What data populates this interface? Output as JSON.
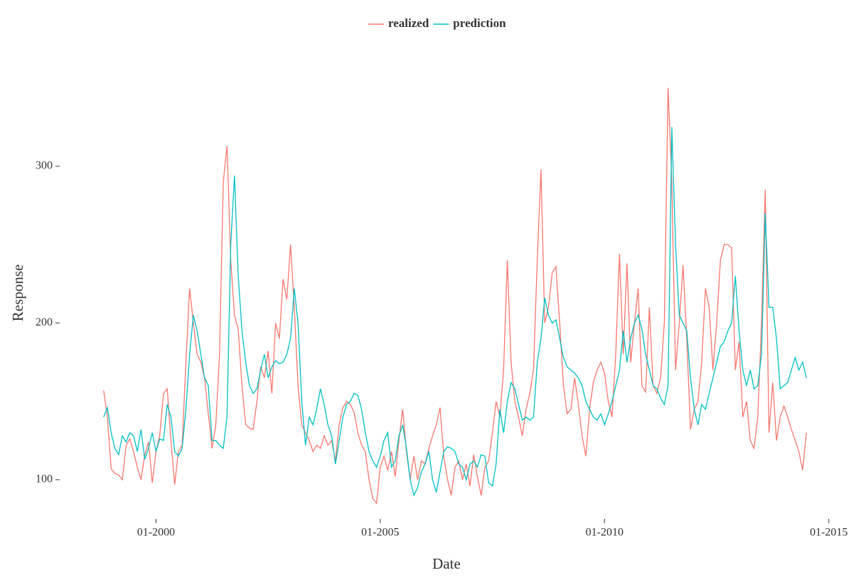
{
  "chart_data": {
    "type": "line",
    "x_label": "Date",
    "y_label": "Response",
    "x": [
      "11-1998",
      "12-1998",
      "01-1999",
      "02-1999",
      "03-1999",
      "04-1999",
      "05-1999",
      "06-1999",
      "07-1999",
      "08-1999",
      "09-1999",
      "10-1999",
      "11-1999",
      "12-1999",
      "01-2000",
      "02-2000",
      "03-2000",
      "04-2000",
      "05-2000",
      "06-2000",
      "07-2000",
      "08-2000",
      "09-2000",
      "10-2000",
      "11-2000",
      "12-2000",
      "01-2001",
      "02-2001",
      "03-2001",
      "04-2001",
      "05-2001",
      "06-2001",
      "07-2001",
      "08-2001",
      "09-2001",
      "10-2001",
      "11-2001",
      "12-2001",
      "01-2002",
      "02-2002",
      "03-2002",
      "04-2002",
      "05-2002",
      "06-2002",
      "07-2002",
      "08-2002",
      "09-2002",
      "10-2002",
      "11-2002",
      "12-2002",
      "01-2003",
      "02-2003",
      "03-2003",
      "04-2003",
      "05-2003",
      "06-2003",
      "07-2003",
      "08-2003",
      "09-2003",
      "10-2003",
      "11-2003",
      "12-2003",
      "01-2004",
      "02-2004",
      "03-2004",
      "04-2004",
      "05-2004",
      "06-2004",
      "07-2004",
      "08-2004",
      "09-2004",
      "10-2004",
      "11-2004",
      "12-2004",
      "01-2005",
      "02-2005",
      "03-2005",
      "04-2005",
      "05-2005",
      "06-2005",
      "07-2005",
      "08-2005",
      "09-2005",
      "10-2005",
      "11-2005",
      "12-2005",
      "01-2006",
      "02-2006",
      "03-2006",
      "04-2006",
      "05-2006",
      "06-2006",
      "07-2006",
      "08-2006",
      "09-2006",
      "10-2006",
      "11-2006",
      "12-2006",
      "01-2007",
      "02-2007",
      "03-2007",
      "04-2007",
      "05-2007",
      "06-2007",
      "07-2007",
      "08-2007",
      "09-2007",
      "10-2007",
      "11-2007",
      "12-2007",
      "01-2008",
      "02-2008",
      "03-2008",
      "04-2008",
      "05-2008",
      "06-2008",
      "07-2008",
      "08-2008",
      "09-2008",
      "10-2008",
      "11-2008",
      "12-2008",
      "01-2009",
      "02-2009",
      "03-2009",
      "04-2009",
      "05-2009",
      "06-2009",
      "07-2009",
      "08-2009",
      "09-2009",
      "10-2009",
      "11-2009",
      "12-2009",
      "01-2010",
      "02-2010",
      "03-2010",
      "04-2010",
      "05-2010",
      "06-2010",
      "07-2010",
      "08-2010",
      "09-2010",
      "10-2010",
      "11-2010",
      "12-2010",
      "01-2011",
      "02-2011",
      "03-2011",
      "04-2011",
      "05-2011",
      "06-2011",
      "07-2011",
      "08-2011",
      "09-2011",
      "10-2011",
      "11-2011",
      "12-2011",
      "01-2012",
      "02-2012",
      "03-2012",
      "04-2012",
      "05-2012",
      "06-2012",
      "07-2012",
      "08-2012",
      "09-2012",
      "10-2012",
      "11-2012",
      "12-2012",
      "01-2013",
      "02-2013",
      "03-2013",
      "04-2013",
      "05-2013",
      "06-2013",
      "07-2013",
      "08-2013",
      "09-2013",
      "10-2013",
      "11-2013",
      "12-2013",
      "01-2014",
      "02-2014",
      "03-2014",
      "04-2014",
      "05-2014",
      "06-2014",
      "07-2014"
    ],
    "series": [
      {
        "name": "realized",
        "color": "#F8766D",
        "values": [
          157,
          140,
          107,
          104,
          103,
          100,
          122,
          126,
          118,
          108,
          100,
          116,
          124,
          98,
          118,
          128,
          155,
          158,
          125,
          97,
          118,
          122,
          175,
          222,
          200,
          180,
          175,
          165,
          142,
          120,
          135,
          180,
          290,
          313,
          240,
          205,
          196,
          160,
          135,
          133,
          132,
          150,
          172,
          165,
          182,
          155,
          200,
          190,
          228,
          215,
          250,
          210,
          160,
          135,
          130,
          125,
          118,
          122,
          120,
          128,
          122,
          125,
          112,
          135,
          146,
          150,
          148,
          143,
          130,
          122,
          118,
          100,
          88,
          85,
          108,
          115,
          106,
          118,
          102,
          125,
          145,
          118,
          100,
          115,
          100,
          112,
          110,
          120,
          128,
          135,
          146,
          115,
          100,
          90,
          108,
          112,
          100,
          110,
          96,
          116,
          102,
          90,
          108,
          112,
          130,
          150,
          140,
          170,
          240,
          175,
          150,
          140,
          128,
          145,
          155,
          170,
          240,
          298,
          200,
          210,
          232,
          236,
          200,
          160,
          142,
          145,
          165,
          148,
          128,
          115,
          145,
          162,
          170,
          175,
          168,
          150,
          140,
          180,
          244,
          180,
          238,
          175,
          200,
          222,
          160,
          156,
          210,
          160,
          155,
          165,
          200,
          350,
          290,
          170,
          200,
          237,
          190,
          132,
          145,
          150,
          175,
          222,
          210,
          170,
          200,
          240,
          250,
          250,
          248,
          170,
          188,
          140,
          150,
          125,
          120,
          140,
          200,
          285,
          130,
          162,
          125,
          140,
          147,
          140,
          132,
          125,
          118,
          106,
          130
        ]
      },
      {
        "name": "prediction",
        "color": "#00BFC4",
        "values": [
          140,
          146,
          130,
          120,
          116,
          128,
          124,
          130,
          128,
          118,
          132,
          113,
          120,
          130,
          118,
          126,
          125,
          148,
          140,
          118,
          115,
          120,
          145,
          180,
          205,
          195,
          180,
          165,
          160,
          125,
          125,
          122,
          120,
          140,
          250,
          294,
          230,
          195,
          175,
          160,
          155,
          158,
          170,
          180,
          165,
          172,
          176,
          174,
          175,
          180,
          190,
          222,
          200,
          150,
          122,
          140,
          135,
          145,
          158,
          148,
          135,
          128,
          110,
          125,
          140,
          148,
          150,
          155,
          154,
          145,
          130,
          118,
          112,
          108,
          115,
          125,
          130,
          108,
          112,
          128,
          135,
          120,
          100,
          90,
          95,
          105,
          110,
          118,
          100,
          92,
          105,
          118,
          121,
          120,
          118,
          110,
          108,
          100,
          110,
          112,
          108,
          116,
          115,
          98,
          96,
          110,
          145,
          130,
          150,
          162,
          158,
          148,
          138,
          140,
          138,
          140,
          175,
          190,
          216,
          205,
          200,
          202,
          190,
          178,
          172,
          170,
          168,
          165,
          160,
          150,
          145,
          140,
          138,
          142,
          135,
          142,
          150,
          160,
          170,
          195,
          175,
          190,
          200,
          205,
          196,
          180,
          170,
          160,
          158,
          152,
          148,
          160,
          325,
          250,
          205,
          200,
          195,
          165,
          145,
          135,
          148,
          145,
          155,
          165,
          175,
          185,
          188,
          195,
          200,
          230,
          195,
          170,
          160,
          170,
          158,
          160,
          180,
          270,
          210,
          210,
          190,
          158,
          160,
          162,
          170,
          178,
          170,
          175,
          165
        ]
      }
    ],
    "xlim": [
      "04-1998",
      "02-2015"
    ],
    "xticks": [
      "01-2000",
      "01-2005",
      "01-2010",
      "01-2015"
    ],
    "ylim": [
      80,
      358
    ],
    "yticks": [
      100,
      200,
      300
    ],
    "grid": false,
    "legend": "top"
  }
}
